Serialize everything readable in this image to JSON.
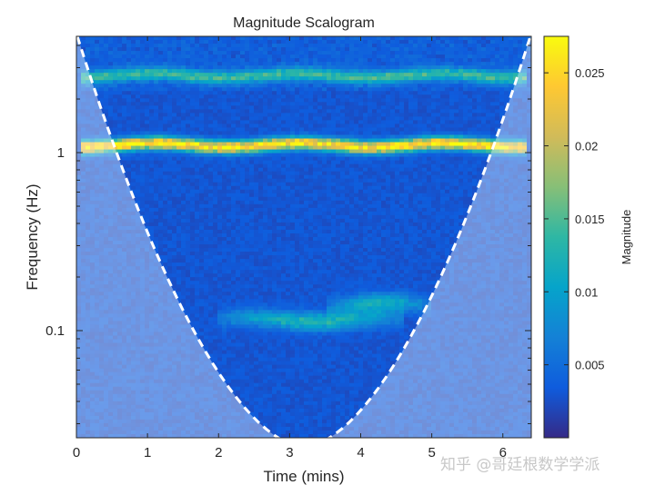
{
  "chart_data": {
    "type": "heatmap",
    "title": "Magnitude Scalogram",
    "xlabel": "Time (mins)",
    "ylabel": "Frequency (Hz)",
    "x_scale": "linear",
    "y_scale": "log",
    "xlim": [
      0,
      6.4
    ],
    "ylim": [
      0.025,
      4.5
    ],
    "x_ticks": [
      {
        "value": 0,
        "label": "0"
      },
      {
        "value": 1,
        "label": "1"
      },
      {
        "value": 2,
        "label": "2"
      },
      {
        "value": 3,
        "label": "3"
      },
      {
        "value": 4,
        "label": "4"
      },
      {
        "value": 5,
        "label": "5"
      },
      {
        "value": 6,
        "label": "6"
      }
    ],
    "y_ticks": [
      {
        "value": 0.1,
        "label": "0.1"
      },
      {
        "value": 1,
        "label": "1"
      }
    ],
    "colorbar": {
      "label": "Magnitude",
      "colormap": "parula",
      "range": [
        0,
        0.0275
      ],
      "ticks": [
        {
          "value": 0.005,
          "label": "0.005"
        },
        {
          "value": 0.01,
          "label": "0.01"
        },
        {
          "value": 0.015,
          "label": "0.015"
        },
        {
          "value": 0.02,
          "label": "0.02"
        },
        {
          "value": 0.025,
          "label": "0.025"
        }
      ]
    },
    "features": [
      {
        "kind": "band",
        "frequency_hz": 1.1,
        "magnitude": 0.024,
        "time_range": [
          0.05,
          6.35
        ]
      },
      {
        "kind": "band",
        "frequency_hz": 2.7,
        "magnitude": 0.011,
        "time_range": [
          0.05,
          6.35
        ]
      },
      {
        "kind": "band",
        "frequency_hz": 0.115,
        "magnitude": 0.0105,
        "time_range": [
          2.0,
          4.6
        ]
      },
      {
        "kind": "band",
        "frequency_hz": 0.14,
        "magnitude": 0.009,
        "time_range": [
          3.5,
          5.0
        ]
      }
    ],
    "background_magnitude": 0.003,
    "cone_of_influence": {
      "style": "dashed",
      "color": "#ffffff",
      "min_frequency_hz": 0.025,
      "center_time": 3.2
    }
  },
  "watermark": {
    "text": "知乎 @哥廷根数学学派"
  }
}
